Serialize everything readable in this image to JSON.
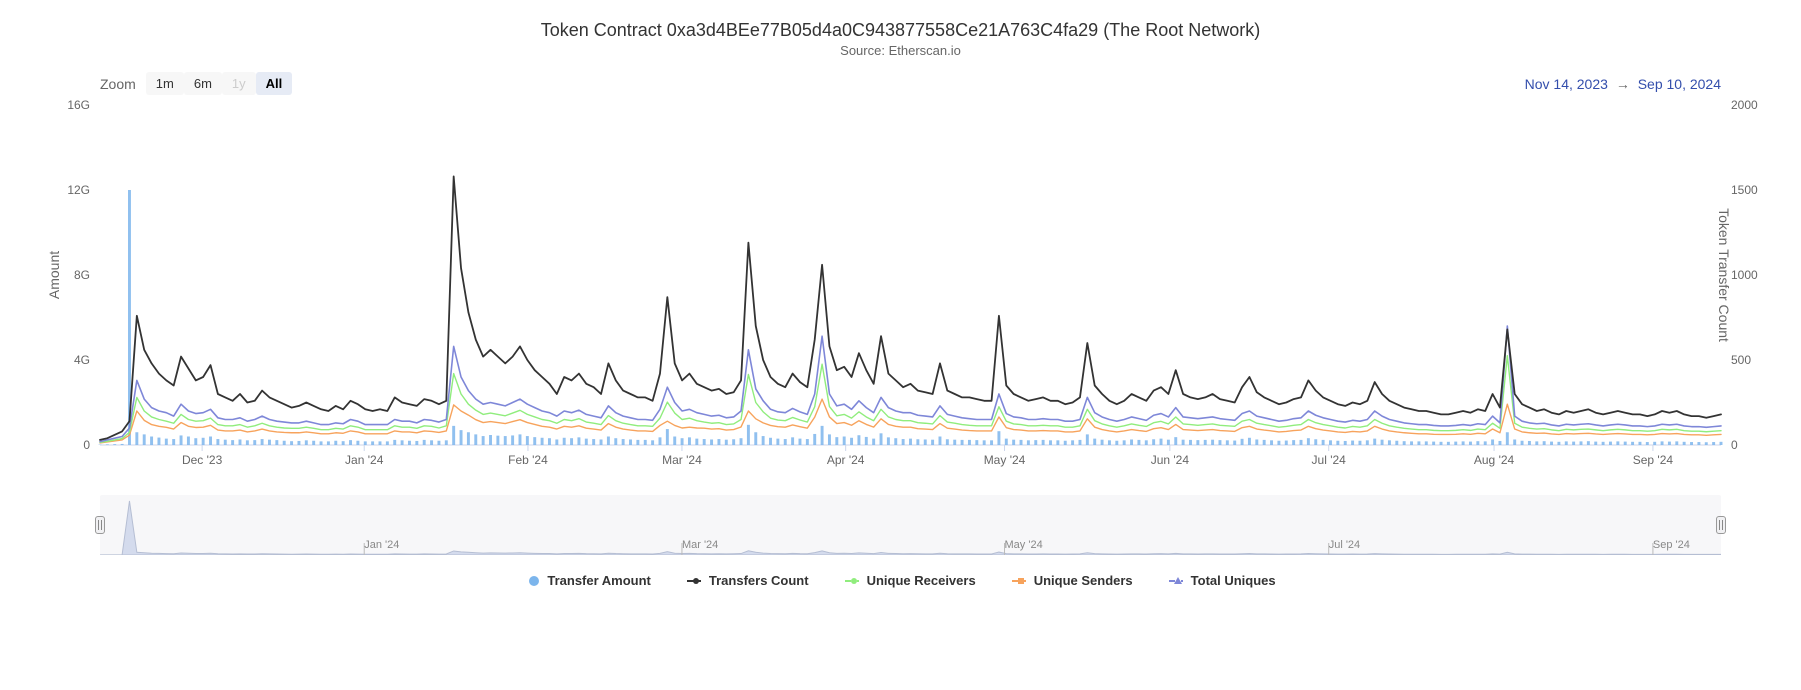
{
  "title": "Token Contract 0xa3d4BEe77B05d4a0C943877558Ce21A763C4fa29 (The Root Network)",
  "subtitle": "Source: Etherscan.io",
  "zoom": {
    "label": "Zoom",
    "buttons": [
      {
        "label": "1m",
        "state": "normal"
      },
      {
        "label": "6m",
        "state": "normal"
      },
      {
        "label": "1y",
        "state": "disabled"
      },
      {
        "label": "All",
        "state": "active"
      }
    ]
  },
  "range": {
    "start": "Nov 14, 2023",
    "arrow": "→",
    "end": "Sep 10, 2024"
  },
  "yAxisLeft": {
    "label": "Amount",
    "min": 0,
    "max": 16,
    "ticks": [
      {
        "value": 0,
        "label": "0"
      },
      {
        "value": 4,
        "label": "4G"
      },
      {
        "value": 8,
        "label": "8G"
      },
      {
        "value": 12,
        "label": "12G"
      },
      {
        "value": 16,
        "label": "16G"
      }
    ]
  },
  "yAxisRight": {
    "label": "Token Transfer Count",
    "min": 0,
    "max": 2000,
    "ticks": [
      {
        "value": 0,
        "label": "0"
      },
      {
        "value": 500,
        "label": "500"
      },
      {
        "value": 1000,
        "label": "1000"
      },
      {
        "value": 1500,
        "label": "1500"
      },
      {
        "value": 2000,
        "label": "2000"
      }
    ]
  },
  "xAxis": {
    "ticks": [
      {
        "pos": 0.063,
        "label": "Dec '23"
      },
      {
        "pos": 0.163,
        "label": "Jan '24"
      },
      {
        "pos": 0.264,
        "label": "Feb '24"
      },
      {
        "pos": 0.359,
        "label": "Mar '24"
      },
      {
        "pos": 0.46,
        "label": "Apr '24"
      },
      {
        "pos": 0.558,
        "label": "May '24"
      },
      {
        "pos": 0.66,
        "label": "Jun '24"
      },
      {
        "pos": 0.758,
        "label": "Jul '24"
      },
      {
        "pos": 0.86,
        "label": "Aug '24"
      },
      {
        "pos": 0.958,
        "label": "Sep '24"
      }
    ]
  },
  "navigatorTicks": [
    {
      "pos": 0.163,
      "label": "Jan '24"
    },
    {
      "pos": 0.359,
      "label": "Mar '24"
    },
    {
      "pos": 0.558,
      "label": "May '24"
    },
    {
      "pos": 0.758,
      "label": "Jul '24"
    },
    {
      "pos": 0.958,
      "label": "Sep '24"
    }
  ],
  "legend": [
    {
      "label": "Transfer Amount",
      "marker": "circle",
      "color": "#7cb5ec"
    },
    {
      "label": "Transfers Count",
      "marker": "line-dot",
      "color": "#333333"
    },
    {
      "label": "Unique Receivers",
      "marker": "dash-dot",
      "color": "#90ed7d"
    },
    {
      "label": "Unique Senders",
      "marker": "dash-square",
      "color": "#f7a35c"
    },
    {
      "label": "Total Uniques",
      "marker": "dash-triangle",
      "color": "#7e87d8"
    }
  ],
  "colors": {
    "transferAmount": "#7cb5ec",
    "transfersCount": "#333333",
    "uniqueReceivers": "#90ed7d",
    "uniqueSenders": "#f7a35c",
    "totalUniques": "#7e87d8",
    "axis": "#ccd6eb",
    "navBg": "#f7f7f9"
  },
  "series": {
    "transfersCount": [
      30,
      40,
      60,
      80,
      140,
      760,
      560,
      480,
      420,
      380,
      350,
      520,
      450,
      380,
      400,
      470,
      300,
      280,
      260,
      300,
      250,
      260,
      320,
      280,
      260,
      240,
      220,
      230,
      250,
      230,
      210,
      200,
      230,
      210,
      260,
      240,
      210,
      200,
      210,
      200,
      280,
      250,
      240,
      230,
      270,
      260,
      240,
      260,
      1580,
      1040,
      780,
      620,
      520,
      560,
      520,
      480,
      520,
      580,
      500,
      440,
      400,
      360,
      300,
      400,
      380,
      420,
      360,
      340,
      300,
      480,
      380,
      320,
      300,
      280,
      280,
      260,
      420,
      870,
      480,
      380,
      420,
      360,
      340,
      320,
      330,
      300,
      310,
      380,
      1190,
      700,
      500,
      400,
      360,
      340,
      420,
      370,
      340,
      620,
      1060,
      580,
      440,
      460,
      400,
      540,
      440,
      360,
      640,
      420,
      380,
      340,
      360,
      320,
      310,
      300,
      480,
      320,
      300,
      280,
      280,
      270,
      260,
      260,
      760,
      350,
      300,
      280,
      260,
      270,
      280,
      260,
      260,
      240,
      250,
      280,
      600,
      350,
      300,
      260,
      240,
      260,
      300,
      280,
      260,
      320,
      340,
      300,
      440,
      300,
      280,
      270,
      280,
      300,
      270,
      260,
      250,
      340,
      400,
      310,
      280,
      260,
      240,
      250,
      270,
      280,
      380,
      320,
      280,
      260,
      240,
      230,
      250,
      240,
      260,
      370,
      300,
      260,
      240,
      220,
      210,
      200,
      200,
      190,
      180,
      180,
      190,
      200,
      190,
      210,
      200,
      300,
      220,
      680,
      300,
      240,
      220,
      200,
      210,
      190,
      180,
      200,
      190,
      200,
      210,
      190,
      180,
      190,
      200,
      190,
      180,
      180,
      170,
      180,
      200,
      190,
      200,
      180,
      170,
      170,
      160,
      170,
      180
    ],
    "totalUniques": [
      20,
      30,
      40,
      50,
      100,
      380,
      270,
      220,
      200,
      190,
      170,
      240,
      200,
      185,
      190,
      210,
      160,
      150,
      150,
      160,
      140,
      150,
      170,
      150,
      140,
      135,
      130,
      130,
      140,
      130,
      120,
      120,
      130,
      125,
      150,
      140,
      120,
      120,
      120,
      120,
      150,
      140,
      140,
      130,
      150,
      145,
      135,
      150,
      580,
      400,
      320,
      270,
      240,
      250,
      240,
      230,
      250,
      270,
      240,
      220,
      200,
      190,
      170,
      200,
      190,
      205,
      180,
      170,
      160,
      230,
      190,
      170,
      160,
      150,
      150,
      145,
      210,
      340,
      250,
      200,
      210,
      190,
      180,
      170,
      175,
      160,
      165,
      200,
      560,
      330,
      260,
      210,
      195,
      190,
      215,
      195,
      180,
      300,
      640,
      300,
      230,
      240,
      210,
      260,
      220,
      190,
      280,
      220,
      200,
      190,
      190,
      175,
      170,
      165,
      230,
      180,
      170,
      160,
      155,
      150,
      150,
      150,
      300,
      185,
      165,
      160,
      150,
      150,
      155,
      150,
      150,
      140,
      140,
      150,
      280,
      190,
      165,
      150,
      140,
      150,
      165,
      155,
      145,
      175,
      185,
      165,
      220,
      165,
      160,
      155,
      160,
      165,
      155,
      150,
      145,
      185,
      200,
      170,
      160,
      150,
      140,
      145,
      155,
      160,
      200,
      175,
      160,
      150,
      140,
      135,
      145,
      140,
      150,
      200,
      170,
      150,
      140,
      130,
      125,
      120,
      120,
      115,
      112,
      112,
      115,
      120,
      115,
      125,
      120,
      170,
      130,
      700,
      170,
      140,
      130,
      125,
      128,
      118,
      112,
      122,
      118,
      122,
      125,
      118,
      112,
      118,
      122,
      118,
      112,
      112,
      108,
      112,
      122,
      118,
      122,
      112,
      108,
      108,
      104,
      108,
      112
    ],
    "uniqueReceivers": [
      15,
      22,
      30,
      38,
      75,
      280,
      200,
      165,
      150,
      140,
      128,
      180,
      150,
      140,
      143,
      158,
      120,
      113,
      113,
      120,
      105,
      113,
      128,
      113,
      105,
      100,
      98,
      98,
      105,
      98,
      90,
      90,
      98,
      94,
      113,
      105,
      90,
      90,
      90,
      90,
      113,
      105,
      105,
      98,
      113,
      110,
      100,
      113,
      420,
      300,
      240,
      205,
      180,
      188,
      180,
      172,
      188,
      204,
      180,
      165,
      150,
      143,
      128,
      150,
      143,
      155,
      135,
      128,
      120,
      173,
      143,
      128,
      120,
      113,
      113,
      110,
      158,
      252,
      188,
      150,
      158,
      143,
      135,
      128,
      131,
      120,
      124,
      150,
      415,
      250,
      195,
      158,
      147,
      143,
      162,
      147,
      135,
      225,
      475,
      226,
      172,
      180,
      158,
      195,
      165,
      143,
      210,
      165,
      150,
      143,
      143,
      131,
      128,
      124,
      173,
      135,
      128,
      120,
      116,
      113,
      113,
      113,
      225,
      140,
      124,
      120,
      113,
      113,
      116,
      113,
      113,
      105,
      105,
      113,
      210,
      143,
      124,
      113,
      105,
      113,
      124,
      116,
      109,
      131,
      139,
      124,
      165,
      124,
      120,
      116,
      120,
      124,
      116,
      113,
      110,
      140,
      150,
      128,
      120,
      113,
      105,
      109,
      116,
      120,
      150,
      131,
      120,
      113,
      105,
      100,
      109,
      105,
      113,
      150,
      128,
      113,
      105,
      98,
      94,
      90,
      90,
      86,
      84,
      84,
      86,
      90,
      86,
      94,
      90,
      128,
      98,
      525,
      128,
      105,
      98,
      94,
      96,
      89,
      84,
      92,
      89,
      92,
      94,
      89,
      84,
      89,
      92,
      89,
      84,
      84,
      81,
      84,
      92,
      89,
      92,
      84,
      81,
      81,
      78,
      81,
      84
    ],
    "uniqueSenders": [
      12,
      18,
      24,
      30,
      58,
      200,
      145,
      120,
      110,
      104,
      94,
      132,
      110,
      103,
      105,
      116,
      88,
      83,
      83,
      88,
      77,
      83,
      94,
      83,
      77,
      74,
      72,
      72,
      77,
      72,
      66,
      66,
      72,
      69,
      83,
      77,
      66,
      66,
      66,
      66,
      83,
      77,
      77,
      72,
      83,
      80,
      74,
      83,
      236,
      200,
      176,
      149,
      132,
      138,
      132,
      126,
      138,
      149,
      132,
      121,
      110,
      105,
      94,
      110,
      105,
      113,
      99,
      94,
      88,
      126,
      105,
      94,
      88,
      83,
      83,
      80,
      115,
      140,
      115,
      100,
      105,
      100,
      99,
      94,
      96,
      88,
      91,
      106,
      200,
      154,
      130,
      115,
      108,
      105,
      118,
      108,
      99,
      164,
      270,
      165,
      126,
      132,
      116,
      143,
      121,
      105,
      154,
      121,
      110,
      105,
      105,
      96,
      94,
      91,
      126,
      99,
      94,
      88,
      85,
      83,
      83,
      83,
      165,
      102,
      91,
      88,
      83,
      83,
      85,
      83,
      83,
      77,
      77,
      83,
      154,
      105,
      91,
      83,
      77,
      83,
      91,
      85,
      80,
      96,
      102,
      91,
      121,
      91,
      88,
      85,
      88,
      91,
      85,
      83,
      80,
      102,
      110,
      94,
      88,
      83,
      77,
      80,
      85,
      88,
      110,
      96,
      88,
      83,
      77,
      74,
      80,
      77,
      83,
      110,
      94,
      83,
      77,
      72,
      69,
      66,
      66,
      63,
      62,
      62,
      63,
      66,
      63,
      69,
      66,
      94,
      72,
      240,
      94,
      77,
      72,
      69,
      70,
      65,
      62,
      67,
      65,
      67,
      69,
      65,
      62,
      65,
      67,
      65,
      62,
      62,
      60,
      62,
      67,
      65,
      67,
      62,
      60,
      60,
      57,
      60,
      62
    ],
    "transferAmount": [
      0.02,
      0.03,
      0.04,
      0.05,
      12,
      0.6,
      0.5,
      0.4,
      0.35,
      0.3,
      0.28,
      0.45,
      0.4,
      0.32,
      0.34,
      0.4,
      0.28,
      0.25,
      0.23,
      0.26,
      0.22,
      0.23,
      0.28,
      0.25,
      0.23,
      0.2,
      0.18,
      0.19,
      0.22,
      0.2,
      0.17,
      0.17,
      0.2,
      0.18,
      0.23,
      0.2,
      0.17,
      0.17,
      0.17,
      0.17,
      0.24,
      0.22,
      0.2,
      0.19,
      0.24,
      0.22,
      0.2,
      0.22,
      0.9,
      0.7,
      0.6,
      0.5,
      0.42,
      0.47,
      0.44,
      0.42,
      0.45,
      0.5,
      0.42,
      0.37,
      0.34,
      0.32,
      0.26,
      0.34,
      0.32,
      0.36,
      0.3,
      0.28,
      0.26,
      0.4,
      0.32,
      0.28,
      0.26,
      0.24,
      0.24,
      0.22,
      0.36,
      0.75,
      0.4,
      0.32,
      0.36,
      0.3,
      0.28,
      0.26,
      0.28,
      0.25,
      0.27,
      0.32,
      0.95,
      0.6,
      0.42,
      0.34,
      0.3,
      0.28,
      0.36,
      0.3,
      0.28,
      0.52,
      0.9,
      0.5,
      0.37,
      0.4,
      0.34,
      0.46,
      0.38,
      0.3,
      0.55,
      0.36,
      0.32,
      0.28,
      0.3,
      0.27,
      0.26,
      0.25,
      0.4,
      0.27,
      0.25,
      0.24,
      0.24,
      0.23,
      0.22,
      0.22,
      0.65,
      0.3,
      0.25,
      0.24,
      0.22,
      0.23,
      0.24,
      0.22,
      0.22,
      0.2,
      0.22,
      0.24,
      0.5,
      0.3,
      0.25,
      0.22,
      0.2,
      0.22,
      0.26,
      0.24,
      0.22,
      0.27,
      0.3,
      0.25,
      0.37,
      0.25,
      0.24,
      0.23,
      0.24,
      0.25,
      0.23,
      0.22,
      0.21,
      0.29,
      0.34,
      0.26,
      0.24,
      0.22,
      0.2,
      0.21,
      0.23,
      0.24,
      0.32,
      0.27,
      0.24,
      0.22,
      0.2,
      0.19,
      0.21,
      0.2,
      0.22,
      0.3,
      0.25,
      0.22,
      0.2,
      0.18,
      0.17,
      0.17,
      0.17,
      0.16,
      0.15,
      0.15,
      0.16,
      0.17,
      0.16,
      0.18,
      0.17,
      0.26,
      0.19,
      0.6,
      0.26,
      0.2,
      0.19,
      0.17,
      0.18,
      0.16,
      0.15,
      0.17,
      0.16,
      0.17,
      0.18,
      0.16,
      0.15,
      0.16,
      0.17,
      0.16,
      0.15,
      0.15,
      0.14,
      0.15,
      0.17,
      0.16,
      0.17,
      0.15,
      0.14,
      0.14,
      0.13,
      0.14,
      0.15
    ]
  }
}
